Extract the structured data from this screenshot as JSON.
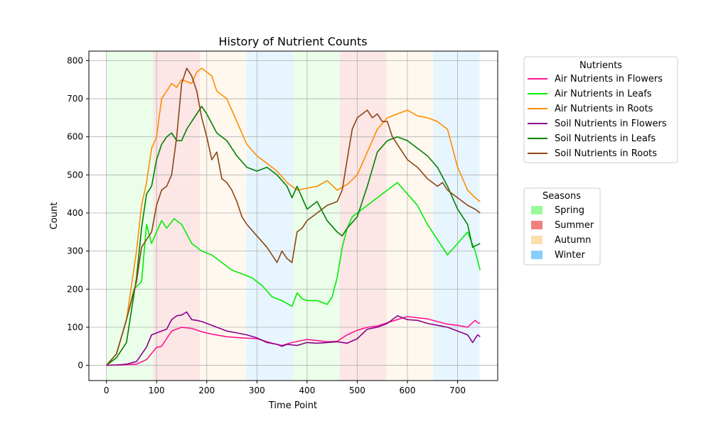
{
  "chart_data": {
    "type": "line",
    "title": "History of Nutrient Counts",
    "xlabel": "Time Point",
    "ylabel": "Count",
    "xlim": [
      -35,
      780
    ],
    "ylim": [
      -40,
      825
    ],
    "xticks": [
      0,
      100,
      200,
      300,
      400,
      500,
      600,
      700
    ],
    "yticks": [
      0,
      100,
      200,
      300,
      400,
      500,
      600,
      700,
      800
    ],
    "grid": true,
    "legend_placement": "outside-right",
    "seasons_legend": {
      "title": "Seasons",
      "entries": [
        {
          "name": "Spring",
          "color": "#98fb98"
        },
        {
          "name": "Summer",
          "color": "#f08080"
        },
        {
          "name": "Autumn",
          "color": "#ffdead"
        },
        {
          "name": "Winter",
          "color": "#87cefa"
        }
      ]
    },
    "season_bands": [
      {
        "season": "Spring",
        "start": 0,
        "end": 93
      },
      {
        "season": "Summer",
        "start": 93,
        "end": 186
      },
      {
        "season": "Autumn",
        "start": 186,
        "end": 279
      },
      {
        "season": "Winter",
        "start": 279,
        "end": 372
      },
      {
        "season": "Spring",
        "start": 372,
        "end": 465
      },
      {
        "season": "Summer",
        "start": 465,
        "end": 558
      },
      {
        "season": "Autumn",
        "start": 558,
        "end": 651
      },
      {
        "season": "Winter",
        "start": 651,
        "end": 744
      }
    ],
    "legend_title": "Nutrients",
    "series": [
      {
        "name": "Air Nutrients in Flowers",
        "color": "#ff1493",
        "x": [
          0,
          30,
          60,
          80,
          100,
          110,
          130,
          150,
          170,
          190,
          210,
          240,
          270,
          300,
          330,
          350,
          370,
          400,
          420,
          440,
          460,
          480,
          500,
          520,
          540,
          560,
          580,
          600,
          620,
          640,
          660,
          680,
          700,
          720,
          735,
          740,
          745
        ],
        "y": [
          0,
          1,
          3,
          15,
          47,
          50,
          90,
          100,
          97,
          88,
          82,
          75,
          72,
          70,
          58,
          52,
          60,
          68,
          65,
          62,
          63,
          80,
          92,
          100,
          103,
          112,
          120,
          128,
          125,
          122,
          115,
          108,
          105,
          100,
          118,
          112,
          110
        ]
      },
      {
        "name": "Air Nutrients in Leafs",
        "color": "#00ee00",
        "x": [
          0,
          20,
          40,
          55,
          70,
          80,
          90,
          100,
          110,
          120,
          135,
          150,
          170,
          190,
          210,
          230,
          250,
          270,
          290,
          310,
          330,
          350,
          370,
          380,
          390,
          400,
          420,
          440,
          450,
          460,
          470,
          480,
          490,
          500,
          520,
          540,
          560,
          580,
          600,
          620,
          640,
          660,
          680,
          700,
          720,
          735,
          745
        ],
        "y": [
          0,
          30,
          120,
          200,
          220,
          370,
          320,
          350,
          380,
          360,
          385,
          370,
          320,
          300,
          290,
          270,
          250,
          240,
          230,
          210,
          180,
          170,
          155,
          190,
          175,
          170,
          170,
          160,
          180,
          230,
          310,
          360,
          390,
          400,
          420,
          440,
          460,
          480,
          450,
          420,
          370,
          330,
          290,
          320,
          350,
          300,
          250
        ]
      },
      {
        "name": "Air Nutrients in Roots",
        "color": "#ff8c00",
        "x": [
          0,
          20,
          40,
          60,
          70,
          80,
          90,
          100,
          110,
          120,
          130,
          140,
          150,
          160,
          170,
          180,
          190,
          200,
          210,
          220,
          240,
          260,
          280,
          300,
          320,
          340,
          360,
          380,
          400,
          420,
          440,
          460,
          480,
          500,
          520,
          540,
          560,
          580,
          600,
          620,
          640,
          660,
          680,
          700,
          720,
          735,
          745
        ],
        "y": [
          0,
          30,
          120,
          300,
          420,
          480,
          570,
          600,
          700,
          720,
          740,
          730,
          750,
          745,
          740,
          770,
          780,
          770,
          760,
          720,
          700,
          640,
          580,
          550,
          530,
          510,
          480,
          460,
          465,
          470,
          485,
          460,
          475,
          500,
          560,
          620,
          650,
          660,
          670,
          655,
          650,
          640,
          620,
          520,
          460,
          440,
          430
        ]
      },
      {
        "name": "Soil Nutrients in Flowers",
        "color": "#8b008b",
        "x": [
          0,
          20,
          40,
          60,
          80,
          90,
          100,
          110,
          120,
          130,
          140,
          150,
          160,
          170,
          180,
          190,
          200,
          220,
          240,
          260,
          280,
          300,
          320,
          340,
          350,
          360,
          380,
          400,
          420,
          440,
          460,
          480,
          500,
          520,
          540,
          560,
          580,
          600,
          620,
          640,
          660,
          680,
          700,
          720,
          730,
          740,
          745
        ],
        "y": [
          0,
          1,
          3,
          10,
          48,
          80,
          85,
          90,
          95,
          120,
          130,
          132,
          140,
          120,
          118,
          115,
          110,
          100,
          90,
          85,
          80,
          72,
          60,
          55,
          50,
          55,
          52,
          60,
          58,
          60,
          62,
          58,
          70,
          95,
          100,
          110,
          130,
          120,
          118,
          110,
          105,
          100,
          90,
          80,
          60,
          80,
          75
        ]
      },
      {
        "name": "Soil Nutrients in Leafs",
        "color": "#008000",
        "x": [
          0,
          20,
          40,
          60,
          70,
          80,
          90,
          100,
          110,
          120,
          130,
          140,
          150,
          160,
          170,
          180,
          190,
          200,
          220,
          240,
          260,
          280,
          300,
          320,
          340,
          360,
          370,
          380,
          400,
          420,
          440,
          460,
          470,
          480,
          500,
          520,
          540,
          560,
          580,
          600,
          620,
          640,
          660,
          680,
          700,
          720,
          730,
          745
        ],
        "y": [
          0,
          20,
          60,
          230,
          360,
          450,
          470,
          540,
          580,
          600,
          610,
          590,
          590,
          620,
          640,
          660,
          680,
          660,
          610,
          590,
          550,
          520,
          510,
          520,
          500,
          470,
          440,
          470,
          410,
          430,
          380,
          350,
          340,
          360,
          390,
          470,
          560,
          590,
          600,
          590,
          570,
          550,
          520,
          470,
          410,
          370,
          310,
          320
        ]
      },
      {
        "name": "Soil Nutrients in Roots",
        "color": "#8b4513",
        "x": [
          0,
          20,
          40,
          60,
          70,
          80,
          90,
          100,
          110,
          120,
          130,
          140,
          150,
          160,
          170,
          180,
          190,
          200,
          210,
          220,
          230,
          240,
          250,
          260,
          270,
          280,
          300,
          320,
          340,
          350,
          360,
          370,
          380,
          390,
          400,
          420,
          440,
          460,
          470,
          480,
          490,
          500,
          510,
          520,
          530,
          540,
          550,
          560,
          570,
          580,
          600,
          620,
          640,
          660,
          670,
          680,
          690,
          700,
          720,
          735,
          745
        ],
        "y": [
          0,
          30,
          120,
          220,
          310,
          330,
          350,
          420,
          460,
          470,
          500,
          600,
          740,
          780,
          760,
          720,
          650,
          600,
          540,
          560,
          490,
          480,
          460,
          430,
          390,
          370,
          340,
          310,
          270,
          300,
          280,
          270,
          350,
          360,
          380,
          400,
          420,
          430,
          460,
          540,
          620,
          650,
          660,
          670,
          650,
          660,
          640,
          640,
          600,
          580,
          540,
          520,
          490,
          470,
          480,
          460,
          450,
          440,
          420,
          410,
          400
        ]
      }
    ]
  }
}
